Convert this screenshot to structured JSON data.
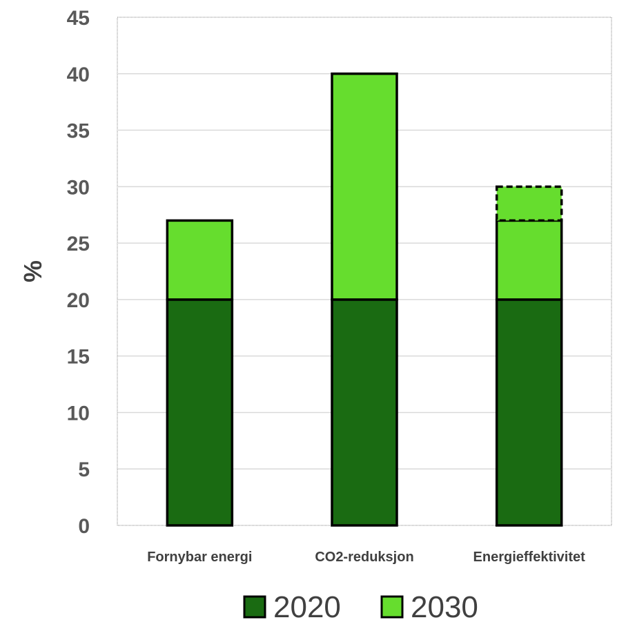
{
  "chart_data": {
    "type": "bar",
    "stacked": true,
    "categories": [
      "Fornybar energi",
      "CO2-reduksjon",
      "Energieffektivitet"
    ],
    "series": [
      {
        "name": "2020",
        "color": "#1a6b12",
        "values": [
          20,
          20,
          20
        ]
      },
      {
        "name": "2030",
        "color": "#66dd2e",
        "values": [
          7,
          20,
          7
        ]
      }
    ],
    "extra_segment": {
      "category": "Energieffektivitet",
      "from": 27,
      "to": 30,
      "style": "dashed",
      "color": "#66dd2e"
    },
    "ylabel": "%",
    "xlabel": "",
    "ylim": [
      0,
      45
    ],
    "yticks": [
      0,
      5,
      10,
      15,
      20,
      25,
      30,
      35,
      40,
      45
    ],
    "grid": true,
    "legend_position": "bottom"
  }
}
